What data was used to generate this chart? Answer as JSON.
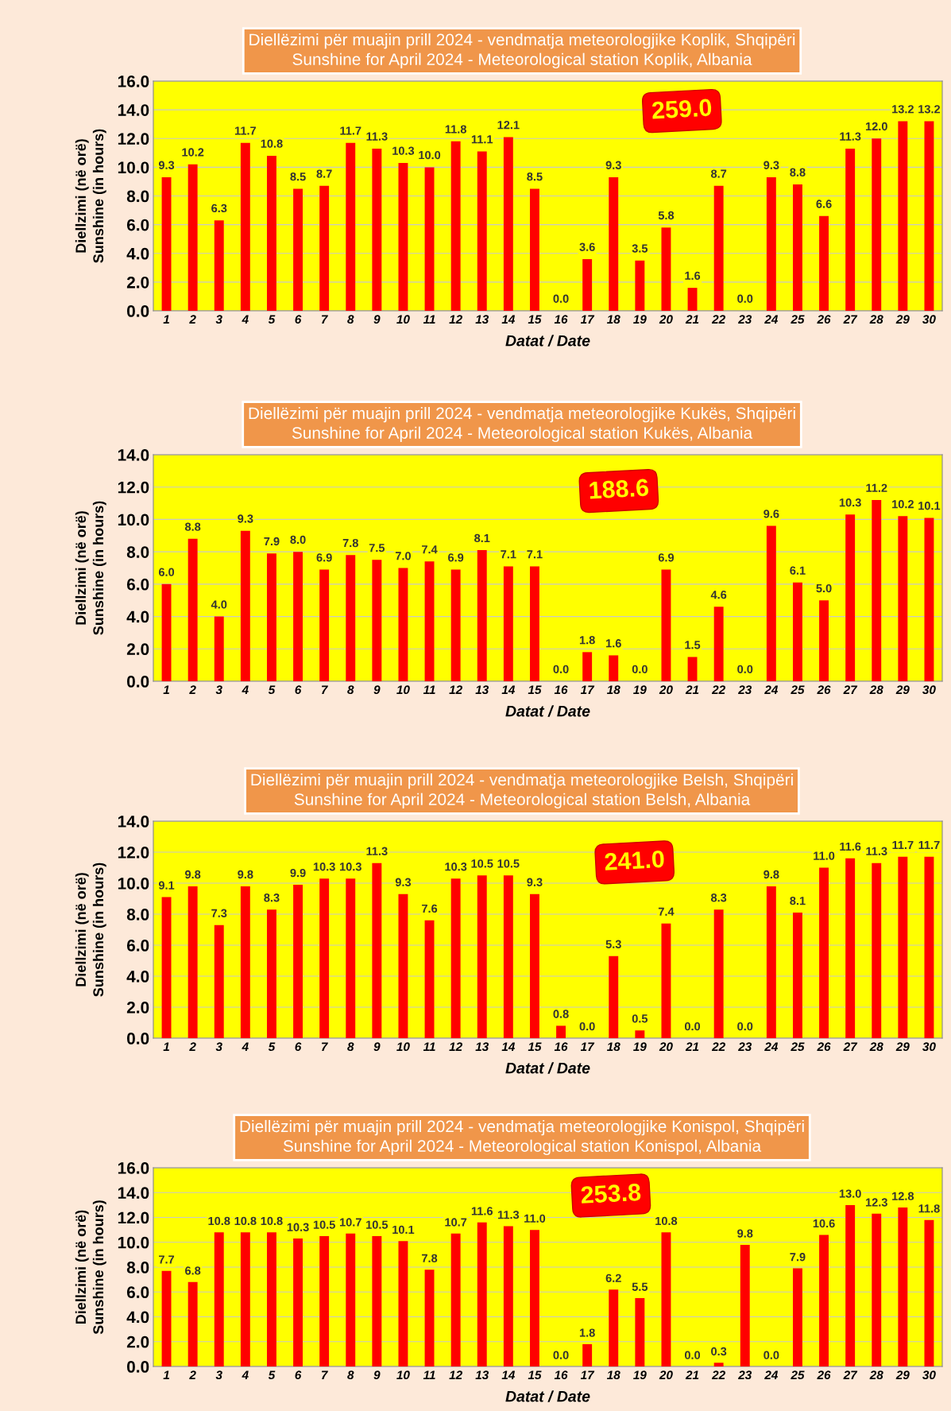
{
  "chart_data": [
    {
      "type": "bar",
      "title": "Diellëzimi për muajin prill 2024 - vendmatja meteorologjike Koplik, Shqipëri",
      "subtitle": "Sunshine for April 2024 - Meteorological station Koplik, Albania",
      "xlabel": "Datat / Date",
      "ylabel": "Diellzimi (në orë)\nSunshine (in hours)",
      "annotations": [
        "259.0"
      ],
      "categories": [
        "1",
        "2",
        "3",
        "4",
        "5",
        "6",
        "7",
        "8",
        "9",
        "10",
        "11",
        "12",
        "13",
        "14",
        "15",
        "16",
        "17",
        "18",
        "19",
        "20",
        "21",
        "22",
        "23",
        "24",
        "25",
        "26",
        "27",
        "28",
        "29",
        "30"
      ],
      "series": [
        {
          "color": "#ff0000",
          "values": [
            9.3,
            10.2,
            6.3,
            11.7,
            10.8,
            8.5,
            8.7,
            11.7,
            11.3,
            10.3,
            10.0,
            11.8,
            11.1,
            12.1,
            8.5,
            0.0,
            3.6,
            9.3,
            3.5,
            5.8,
            1.6,
            8.7,
            0.0,
            9.3,
            8.8,
            6.6,
            11.3,
            12.0,
            13.2,
            13.2
          ],
          "value_labels": [
            "9.3",
            "10.2",
            "6.3",
            "11.7",
            "10.8",
            "8.5",
            "8.7",
            "11.7",
            "11.3",
            "10.3",
            "10.0",
            "11.8",
            "11.1",
            "12.1",
            "8.5",
            "0.0",
            "3.6",
            "9.3",
            "3.5",
            "5.8",
            "1.6",
            "8.7",
            "0.0",
            "9.3",
            "8.8",
            "6.6",
            "11.3",
            "12.0",
            "13.2",
            "13.2"
          ]
        }
      ],
      "ylim": [
        0,
        16
      ],
      "yticks": [
        {
          "value": 0,
          "label": "0.0"
        },
        {
          "value": 2,
          "label": "2.0"
        },
        {
          "value": 4,
          "label": "4.0"
        },
        {
          "value": 6,
          "label": "6.0"
        },
        {
          "value": 8,
          "label": "8.0"
        },
        {
          "value": 10,
          "label": "10.0"
        },
        {
          "value": 12,
          "label": "12.0"
        },
        {
          "value": 14,
          "label": "14.0"
        },
        {
          "value": 16,
          "label": "16.0"
        }
      ],
      "grid": "y"
    },
    {
      "type": "bar",
      "title": "Diellëzimi për muajin prill 2024 - vendmatja meteorologjike Kukës, Shqipëri",
      "subtitle": "Sunshine for April 2024 - Meteorological station Kukës, Albania",
      "xlabel": "Datat / Date",
      "ylabel": "Diellzimi (në orë)\nSunshine (in hours)",
      "annotations": [
        "188.6"
      ],
      "categories": [
        "1",
        "2",
        "3",
        "4",
        "5",
        "6",
        "7",
        "8",
        "9",
        "10",
        "11",
        "12",
        "13",
        "14",
        "15",
        "16",
        "17",
        "18",
        "19",
        "20",
        "21",
        "22",
        "23",
        "24",
        "25",
        "26",
        "27",
        "28",
        "29",
        "30"
      ],
      "series": [
        {
          "color": "#ff0000",
          "values": [
            6.0,
            8.8,
            4.0,
            9.3,
            7.9,
            8.0,
            6.9,
            7.8,
            7.5,
            7.0,
            7.4,
            6.9,
            8.1,
            7.1,
            7.1,
            0.0,
            1.8,
            1.6,
            0.0,
            6.9,
            1.5,
            4.6,
            0.0,
            9.6,
            6.1,
            5.0,
            10.3,
            11.2,
            10.2,
            10.1
          ],
          "value_labels": [
            "6.0",
            "8.8",
            "4.0",
            "9.3",
            "7.9",
            "8.0",
            "6.9",
            "7.8",
            "7.5",
            "7.0",
            "7.4",
            "6.9",
            "8.1",
            "7.1",
            "7.1",
            "0.0",
            "1.8",
            "1.6",
            "0.0",
            "6.9",
            "1.5",
            "4.6",
            "0.0",
            "9.6",
            "6.1",
            "5.0",
            "10.3",
            "11.2",
            "10.2",
            "10.1"
          ]
        }
      ],
      "ylim": [
        0,
        14
      ],
      "yticks": [
        {
          "value": 0,
          "label": "0.0"
        },
        {
          "value": 2,
          "label": "2.0"
        },
        {
          "value": 4,
          "label": "4.0"
        },
        {
          "value": 6,
          "label": "6.0"
        },
        {
          "value": 8,
          "label": "8.0"
        },
        {
          "value": 10,
          "label": "10.0"
        },
        {
          "value": 12,
          "label": "12.0"
        },
        {
          "value": 14,
          "label": "14.0"
        }
      ],
      "grid": "y"
    },
    {
      "type": "bar",
      "title": "Diellëzimi për muajin prill 2024 - vendmatja meteorologjike Belsh, Shqipëri",
      "subtitle": "Sunshine for April 2024 - Meteorological station Belsh, Albania",
      "xlabel": "Datat / Date",
      "ylabel": "Diellzimi (në orë)\nSunshine (in hours)",
      "annotations": [
        "241.0"
      ],
      "categories": [
        "1",
        "2",
        "3",
        "4",
        "5",
        "6",
        "7",
        "8",
        "9",
        "10",
        "11",
        "12",
        "13",
        "14",
        "15",
        "16",
        "17",
        "18",
        "19",
        "20",
        "21",
        "22",
        "23",
        "24",
        "25",
        "26",
        "27",
        "28",
        "29",
        "30"
      ],
      "series": [
        {
          "color": "#ff0000",
          "values": [
            9.1,
            9.8,
            7.3,
            9.8,
            8.3,
            9.9,
            10.3,
            10.3,
            11.3,
            9.3,
            7.6,
            10.3,
            10.5,
            10.5,
            9.3,
            0.8,
            0.0,
            5.3,
            0.5,
            7.4,
            0.0,
            8.3,
            0.0,
            9.8,
            8.1,
            11.0,
            11.6,
            11.3,
            11.7,
            11.7
          ],
          "value_labels": [
            "9.1",
            "9.8",
            "7.3",
            "9.8",
            "8.3",
            "9.9",
            "10.3",
            "10.3",
            "11.3",
            "9.3",
            "7.6",
            "10.3",
            "10.5",
            "10.5",
            "9.3",
            "0.8",
            "0.0",
            "5.3",
            "0.5",
            "7.4",
            "0.0",
            "8.3",
            "0.0",
            "9.8",
            "8.1",
            "11.0",
            "11.6",
            "11.3",
            "11.7",
            "11.7"
          ]
        }
      ],
      "ylim": [
        0,
        14
      ],
      "yticks": [
        {
          "value": 0,
          "label": "0.0"
        },
        {
          "value": 2,
          "label": "2.0"
        },
        {
          "value": 4,
          "label": "4.0"
        },
        {
          "value": 6,
          "label": "6.0"
        },
        {
          "value": 8,
          "label": "8.0"
        },
        {
          "value": 10,
          "label": "10.0"
        },
        {
          "value": 12,
          "label": "12.0"
        },
        {
          "value": 14,
          "label": "14.0"
        }
      ],
      "grid": "y"
    },
    {
      "type": "bar",
      "title": "Diellëzimi për muajin prill 2024 - vendmatja meteorologjike Konispol, Shqipëri",
      "subtitle": "Sunshine for April 2024 - Meteorological station Konispol, Albania",
      "xlabel": "Datat / Date",
      "ylabel": "Diellzimi (në orë)\nSunshine (in hours)",
      "annotations": [
        "253.8"
      ],
      "categories": [
        "1",
        "2",
        "3",
        "4",
        "5",
        "6",
        "7",
        "8",
        "9",
        "10",
        "11",
        "12",
        "13",
        "14",
        "15",
        "16",
        "17",
        "18",
        "19",
        "20",
        "21",
        "22",
        "23",
        "24",
        "25",
        "26",
        "27",
        "28",
        "29",
        "30"
      ],
      "series": [
        {
          "color": "#ff0000",
          "values": [
            7.7,
            6.8,
            10.8,
            10.8,
            10.8,
            10.3,
            10.5,
            10.7,
            10.5,
            10.1,
            7.8,
            10.7,
            11.6,
            11.3,
            11.0,
            0.0,
            1.8,
            6.2,
            5.5,
            10.8,
            0.0,
            0.3,
            9.8,
            0.0,
            7.9,
            10.6,
            13.0,
            12.3,
            12.8,
            11.8
          ],
          "value_labels": [
            "7.7",
            "6.8",
            "10.8",
            "10.8",
            "10.8",
            "10.3",
            "10.5",
            "10.7",
            "10.5",
            "10.1",
            "7.8",
            "10.7",
            "11.6",
            "11.3",
            "11.0",
            "0.0",
            "1.8",
            "6.2",
            "5.5",
            "10.8",
            "0.0",
            "0.3",
            "9.8",
            "0.0",
            "7.9",
            "10.6",
            "13.0",
            "12.3",
            "12.8",
            "11.8"
          ]
        }
      ],
      "ylim": [
        0,
        16
      ],
      "yticks": [
        {
          "value": 0,
          "label": "0.0"
        },
        {
          "value": 2,
          "label": "2.0"
        },
        {
          "value": 4,
          "label": "4.0"
        },
        {
          "value": 6,
          "label": "6.0"
        },
        {
          "value": 8,
          "label": "8.0"
        },
        {
          "value": 10,
          "label": "10.0"
        },
        {
          "value": 12,
          "label": "12.0"
        },
        {
          "value": 14,
          "label": "14.0"
        },
        {
          "value": 16,
          "label": "16.0"
        }
      ],
      "grid": "y"
    }
  ]
}
